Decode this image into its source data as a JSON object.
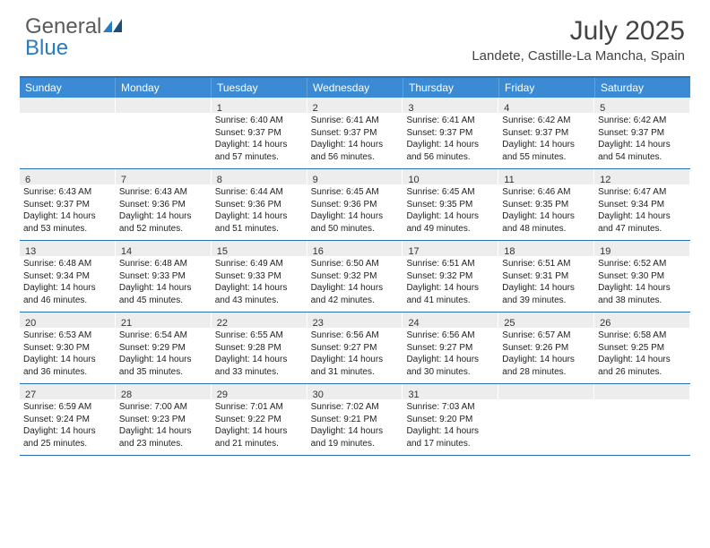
{
  "logo": {
    "word1": "General",
    "word2": "Blue"
  },
  "title": "July 2025",
  "location": "Landete, Castille-La Mancha, Spain",
  "colors": {
    "header_bg": "#3b8bd4",
    "rule": "#2a72b5",
    "daynum_bg": "#ededed",
    "logo_gray": "#5a5a5a",
    "logo_blue": "#2a7bbf"
  },
  "day_headers": [
    "Sunday",
    "Monday",
    "Tuesday",
    "Wednesday",
    "Thursday",
    "Friday",
    "Saturday"
  ],
  "weeks": [
    [
      {
        "empty": true
      },
      {
        "empty": true
      },
      {
        "num": "1",
        "sunrise": "6:40 AM",
        "sunset": "9:37 PM",
        "daylight": "14 hours and 57 minutes."
      },
      {
        "num": "2",
        "sunrise": "6:41 AM",
        "sunset": "9:37 PM",
        "daylight": "14 hours and 56 minutes."
      },
      {
        "num": "3",
        "sunrise": "6:41 AM",
        "sunset": "9:37 PM",
        "daylight": "14 hours and 56 minutes."
      },
      {
        "num": "4",
        "sunrise": "6:42 AM",
        "sunset": "9:37 PM",
        "daylight": "14 hours and 55 minutes."
      },
      {
        "num": "5",
        "sunrise": "6:42 AM",
        "sunset": "9:37 PM",
        "daylight": "14 hours and 54 minutes."
      }
    ],
    [
      {
        "num": "6",
        "sunrise": "6:43 AM",
        "sunset": "9:37 PM",
        "daylight": "14 hours and 53 minutes."
      },
      {
        "num": "7",
        "sunrise": "6:43 AM",
        "sunset": "9:36 PM",
        "daylight": "14 hours and 52 minutes."
      },
      {
        "num": "8",
        "sunrise": "6:44 AM",
        "sunset": "9:36 PM",
        "daylight": "14 hours and 51 minutes."
      },
      {
        "num": "9",
        "sunrise": "6:45 AM",
        "sunset": "9:36 PM",
        "daylight": "14 hours and 50 minutes."
      },
      {
        "num": "10",
        "sunrise": "6:45 AM",
        "sunset": "9:35 PM",
        "daylight": "14 hours and 49 minutes."
      },
      {
        "num": "11",
        "sunrise": "6:46 AM",
        "sunset": "9:35 PM",
        "daylight": "14 hours and 48 minutes."
      },
      {
        "num": "12",
        "sunrise": "6:47 AM",
        "sunset": "9:34 PM",
        "daylight": "14 hours and 47 minutes."
      }
    ],
    [
      {
        "num": "13",
        "sunrise": "6:48 AM",
        "sunset": "9:34 PM",
        "daylight": "14 hours and 46 minutes."
      },
      {
        "num": "14",
        "sunrise": "6:48 AM",
        "sunset": "9:33 PM",
        "daylight": "14 hours and 45 minutes."
      },
      {
        "num": "15",
        "sunrise": "6:49 AM",
        "sunset": "9:33 PM",
        "daylight": "14 hours and 43 minutes."
      },
      {
        "num": "16",
        "sunrise": "6:50 AM",
        "sunset": "9:32 PM",
        "daylight": "14 hours and 42 minutes."
      },
      {
        "num": "17",
        "sunrise": "6:51 AM",
        "sunset": "9:32 PM",
        "daylight": "14 hours and 41 minutes."
      },
      {
        "num": "18",
        "sunrise": "6:51 AM",
        "sunset": "9:31 PM",
        "daylight": "14 hours and 39 minutes."
      },
      {
        "num": "19",
        "sunrise": "6:52 AM",
        "sunset": "9:30 PM",
        "daylight": "14 hours and 38 minutes."
      }
    ],
    [
      {
        "num": "20",
        "sunrise": "6:53 AM",
        "sunset": "9:30 PM",
        "daylight": "14 hours and 36 minutes."
      },
      {
        "num": "21",
        "sunrise": "6:54 AM",
        "sunset": "9:29 PM",
        "daylight": "14 hours and 35 minutes."
      },
      {
        "num": "22",
        "sunrise": "6:55 AM",
        "sunset": "9:28 PM",
        "daylight": "14 hours and 33 minutes."
      },
      {
        "num": "23",
        "sunrise": "6:56 AM",
        "sunset": "9:27 PM",
        "daylight": "14 hours and 31 minutes."
      },
      {
        "num": "24",
        "sunrise": "6:56 AM",
        "sunset": "9:27 PM",
        "daylight": "14 hours and 30 minutes."
      },
      {
        "num": "25",
        "sunrise": "6:57 AM",
        "sunset": "9:26 PM",
        "daylight": "14 hours and 28 minutes."
      },
      {
        "num": "26",
        "sunrise": "6:58 AM",
        "sunset": "9:25 PM",
        "daylight": "14 hours and 26 minutes."
      }
    ],
    [
      {
        "num": "27",
        "sunrise": "6:59 AM",
        "sunset": "9:24 PM",
        "daylight": "14 hours and 25 minutes."
      },
      {
        "num": "28",
        "sunrise": "7:00 AM",
        "sunset": "9:23 PM",
        "daylight": "14 hours and 23 minutes."
      },
      {
        "num": "29",
        "sunrise": "7:01 AM",
        "sunset": "9:22 PM",
        "daylight": "14 hours and 21 minutes."
      },
      {
        "num": "30",
        "sunrise": "7:02 AM",
        "sunset": "9:21 PM",
        "daylight": "14 hours and 19 minutes."
      },
      {
        "num": "31",
        "sunrise": "7:03 AM",
        "sunset": "9:20 PM",
        "daylight": "14 hours and 17 minutes."
      },
      {
        "empty": true
      },
      {
        "empty": true
      }
    ]
  ],
  "labels": {
    "sunrise": "Sunrise:",
    "sunset": "Sunset:",
    "daylight": "Daylight:"
  }
}
